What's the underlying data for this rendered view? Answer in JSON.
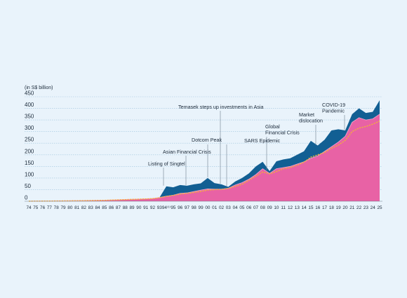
{
  "chart_data": {
    "type": "area",
    "title": "",
    "unit_label": "(in S$ billion)",
    "ylim": [
      0,
      450
    ],
    "y_ticks": [
      0,
      50,
      100,
      150,
      200,
      250,
      300,
      350,
      400,
      450
    ],
    "grid": true,
    "x_tick_labels": [
      "74",
      "75",
      "76",
      "77",
      "78",
      "79",
      "80",
      "81",
      "82",
      "83",
      "84",
      "85",
      "86",
      "87",
      "88",
      "89",
      "90",
      "91",
      "92",
      "93",
      "94⁽¹⁾",
      "95",
      "96",
      "97",
      "98",
      "99",
      "00",
      "01",
      "02",
      "03",
      "04",
      "05",
      "06",
      "07",
      "08",
      "09",
      "10",
      "11",
      "12",
      "13",
      "14",
      "15",
      "16",
      "17",
      "18",
      "19",
      "20",
      "21",
      "22",
      "23",
      "24",
      "25"
    ],
    "colors": {
      "total": "#125f93",
      "inner": "#e862a5",
      "line": "#f2b23a",
      "inner_edge": "#f7a8cb",
      "grid": "#9fc4dd"
    },
    "series": [
      {
        "key": "total",
        "values": [
          0.4,
          0.6,
          1,
          1.2,
          1.5,
          1.8,
          2.2,
          2.6,
          3,
          3.5,
          4,
          4.5,
          5.5,
          6.5,
          7.5,
          8.5,
          9.5,
          10.5,
          12,
          16,
          64,
          60,
          70,
          67,
          73,
          77,
          100,
          78,
          73,
          62,
          85,
          100,
          120,
          150,
          170,
          130,
          172,
          180,
          185,
          200,
          215,
          260,
          240,
          265,
          305,
          310,
          305,
          375,
          400,
          380,
          385,
          435
        ]
      },
      {
        "key": "inner",
        "values": [
          0.4,
          0.6,
          1,
          1.2,
          1.5,
          1.8,
          2.2,
          2.6,
          3,
          3.5,
          4,
          4.5,
          5.5,
          6.5,
          7.5,
          8.5,
          9.5,
          10.5,
          12,
          16,
          22,
          26,
          34,
          36,
          42,
          48,
          53,
          52,
          52,
          56,
          70,
          80,
          95,
          115,
          140,
          120,
          140,
          145,
          150,
          160,
          170,
          185,
          195,
          215,
          235,
          255,
          280,
          340,
          360,
          350,
          355,
          375
        ]
      },
      {
        "key": "line",
        "values": [
          0.3,
          0.5,
          0.8,
          1,
          1.2,
          1.5,
          1.8,
          2.1,
          2.5,
          3,
          3.5,
          4,
          5,
          6,
          7,
          8,
          9,
          10,
          11,
          15,
          21,
          25,
          31,
          34,
          38,
          42,
          48,
          50,
          51,
          55,
          64,
          73,
          90,
          108,
          126,
          118,
          128,
          140,
          145,
          155,
          168,
          190,
          200,
          210,
          228,
          242,
          262,
          300,
          315,
          322,
          332,
          345
        ]
      }
    ],
    "annotations": [
      {
        "label": "Listing of Singtel",
        "x_index": 20
      },
      {
        "label": "Asian Financial Crisis",
        "x_index": 23
      },
      {
        "label": "Dotcom Peak",
        "x_index": 26
      },
      {
        "label": "Temasek steps up investments in Asia",
        "x_index": 28
      },
      {
        "label": "SARS Epidemic",
        "x_index": 29
      },
      {
        "label": "Global Financial Crisis",
        "lines": [
          "Global",
          "Financial Crisis"
        ],
        "x_index": 35
      },
      {
        "label": "Market dislocation",
        "lines": [
          "Market",
          "dislocation"
        ],
        "x_index": 42
      },
      {
        "label": "COVID-19 Pandemic",
        "lines": [
          "COVID-19",
          "Pandemic"
        ],
        "x_index": 46
      }
    ]
  }
}
